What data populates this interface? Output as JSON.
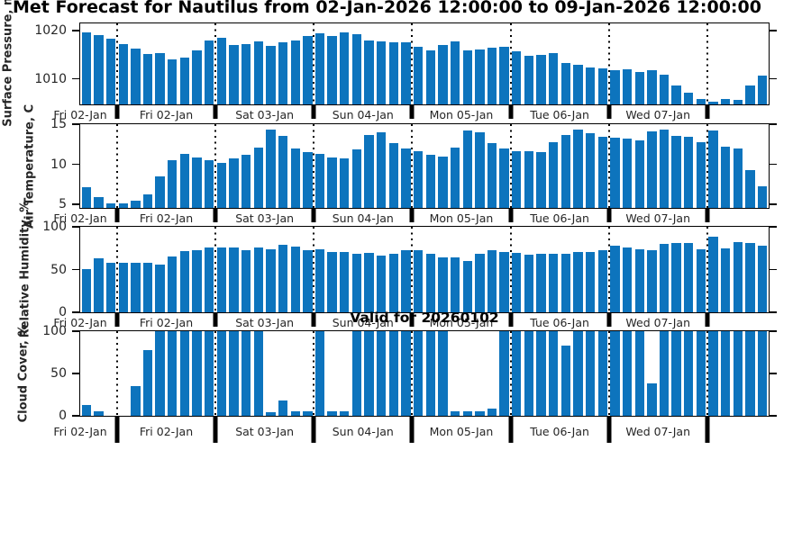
{
  "title": "Met Forecast for Nautilus from 02-Jan-2026 12:00:00 to 09-Jan-2026 12:00:00",
  "annotation": "Valid for 20260102",
  "bar_color": "#0d74bd",
  "axis_color": "#000000",
  "tick_label_color": "#262626",
  "day_labels": [
    "Fri 02-Jan",
    "Fri 02-Jan",
    "Sat 03-Jan",
    "Sun 04-Jan",
    "Mon 05-Jan",
    "Tue 06-Jan",
    "Wed 07-Jan"
  ],
  "day_boundaries_after_bar": [
    3,
    11,
    19,
    27,
    35,
    43,
    51
  ],
  "chart_data": [
    {
      "type": "bar",
      "ylabel": "Surface Pressure, mb",
      "yticks": [
        1010,
        1020
      ],
      "ylim": [
        1004.7,
        1021.5
      ],
      "grid": "vertical-dotted-day-lines",
      "values": [
        1019.6,
        1019.1,
        1018.3,
        1017.2,
        1016.2,
        1015.1,
        1015.3,
        1014.0,
        1014.4,
        1015.9,
        1017.9,
        1018.6,
        1017.1,
        1017.3,
        1017.8,
        1016.9,
        1017.5,
        1018.0,
        1018.8,
        1019.4,
        1018.8,
        1019.7,
        1019.3,
        1017.9,
        1017.8,
        1017.6,
        1017.5,
        1016.7,
        1015.9,
        1017.0,
        1017.7,
        1015.9,
        1016.1,
        1016.5,
        1016.7,
        1015.8,
        1014.7,
        1015.0,
        1015.3,
        1013.2,
        1013.0,
        1012.4,
        1012.1,
        1011.8,
        1012.0,
        1011.5,
        1011.8,
        1010.8,
        1008.6,
        1007.1,
        1005.8,
        1005.3,
        1005.9,
        1005.7,
        1008.7,
        1010.6
      ]
    },
    {
      "type": "bar",
      "ylabel": "Air Temperature, C",
      "yticks": [
        5,
        10,
        15
      ],
      "ylim": [
        4.6,
        15.0
      ],
      "grid": "vertical-dotted-day-lines",
      "values": [
        7.2,
        5.9,
        5.2,
        5.2,
        5.5,
        6.3,
        8.5,
        10.5,
        11.3,
        10.9,
        10.5,
        10.2,
        10.7,
        11.2,
        12.1,
        14.3,
        13.6,
        12.0,
        11.5,
        11.3,
        10.9,
        10.7,
        11.9,
        13.7,
        14.0,
        12.7,
        12.0,
        11.6,
        11.2,
        11.0,
        12.1,
        14.2,
        14.0,
        12.6,
        12.0,
        11.6,
        11.7,
        11.5,
        12.8,
        13.7,
        14.3,
        13.9,
        13.4,
        13.3,
        13.2,
        13.0,
        14.1,
        14.3,
        13.5,
        13.4,
        12.8,
        14.2,
        12.2,
        12.0,
        9.3,
        7.3
      ]
    },
    {
      "type": "bar",
      "ylabel": "Relative Humidity, %",
      "yticks": [
        0,
        50,
        100
      ],
      "ylim": [
        0,
        100
      ],
      "grid": "vertical-dotted-day-lines",
      "values": [
        51,
        63,
        58,
        58,
        58,
        58,
        56,
        65,
        72,
        73,
        76,
        76,
        76,
        73,
        76,
        74,
        79,
        77,
        73,
        74,
        71,
        71,
        68,
        70,
        66,
        68,
        73,
        73,
        68,
        64,
        64,
        60,
        68,
        73,
        71,
        69,
        67,
        68,
        68,
        68,
        71,
        71,
        73,
        78,
        76,
        74,
        73,
        80,
        81,
        81,
        74,
        88,
        75,
        82,
        81,
        78
      ]
    },
    {
      "type": "bar",
      "ylabel": "Cloud Cover, %",
      "yticks": [
        0,
        50,
        100
      ],
      "ylim": [
        0,
        100
      ],
      "grid": "vertical-dotted-day-lines",
      "values": [
        13,
        5,
        0,
        0,
        35,
        78,
        100,
        100,
        100,
        100,
        100,
        100,
        100,
        100,
        100,
        4,
        18,
        5,
        5,
        100,
        5,
        5,
        100,
        100,
        100,
        100,
        100,
        100,
        100,
        100,
        5,
        5,
        5,
        8,
        100,
        100,
        100,
        100,
        100,
        83,
        100,
        100,
        100,
        100,
        100,
        100,
        38,
        100,
        100,
        100,
        100,
        100,
        100,
        100,
        100,
        100
      ]
    }
  ]
}
